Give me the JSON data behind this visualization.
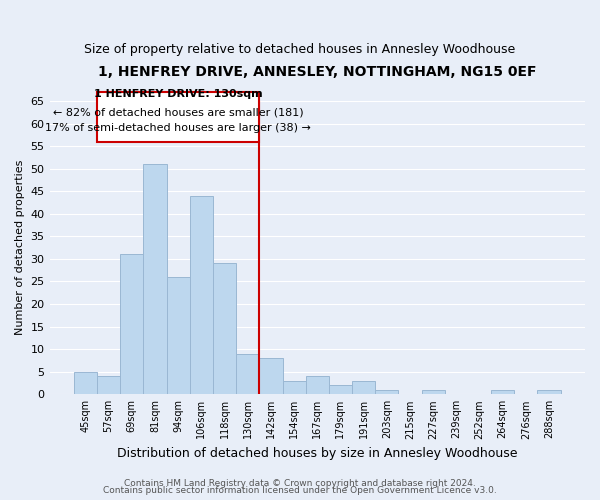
{
  "title": "1, HENFREY DRIVE, ANNESLEY, NOTTINGHAM, NG15 0EF",
  "subtitle": "Size of property relative to detached houses in Annesley Woodhouse",
  "xlabel": "Distribution of detached houses by size in Annesley Woodhouse",
  "ylabel": "Number of detached properties",
  "bin_labels": [
    "45sqm",
    "57sqm",
    "69sqm",
    "81sqm",
    "94sqm",
    "106sqm",
    "118sqm",
    "130sqm",
    "142sqm",
    "154sqm",
    "167sqm",
    "179sqm",
    "191sqm",
    "203sqm",
    "215sqm",
    "227sqm",
    "239sqm",
    "252sqm",
    "264sqm",
    "276sqm",
    "288sqm"
  ],
  "bin_values": [
    5,
    4,
    31,
    51,
    26,
    44,
    29,
    9,
    8,
    3,
    4,
    2,
    3,
    1,
    0,
    1,
    0,
    0,
    1,
    0,
    1
  ],
  "bar_color": "#bdd7ee",
  "bar_edge_color": "#9ab7d3",
  "highlight_index": 7,
  "highlight_line_color": "#cc0000",
  "ylim": [
    0,
    65
  ],
  "yticks": [
    0,
    5,
    10,
    15,
    20,
    25,
    30,
    35,
    40,
    45,
    50,
    55,
    60,
    65
  ],
  "annotation_title": "1 HENFREY DRIVE: 130sqm",
  "annotation_line1": "← 82% of detached houses are smaller (181)",
  "annotation_line2": "17% of semi-detached houses are larger (38) →",
  "annotation_box_color": "#ffffff",
  "annotation_box_edge": "#cc0000",
  "footer_line1": "Contains HM Land Registry data © Crown copyright and database right 2024.",
  "footer_line2": "Contains public sector information licensed under the Open Government Licence v3.0.",
  "background_color": "#e8eef8",
  "plot_background": "#e8eef8",
  "grid_color": "#ffffff",
  "title_fontsize": 10,
  "subtitle_fontsize": 9
}
